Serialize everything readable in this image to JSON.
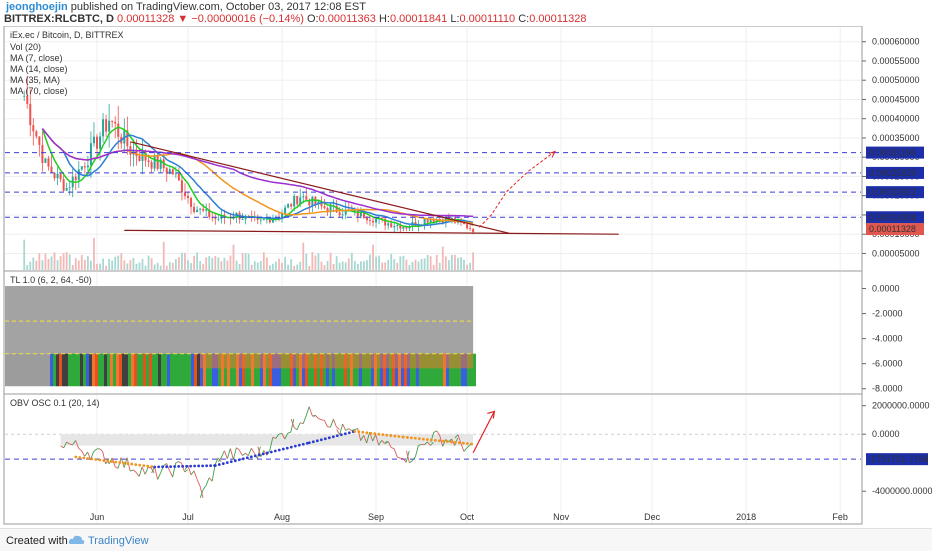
{
  "header": {
    "user": "jeonghoejin",
    "published": " published on TradingView.com, October 03, 2017 12:08 EST",
    "symbol": "BITTREX:RLCBTC, D",
    "price": " 0.00011328",
    "arrow": "▼",
    "change": " −0.00000016 (−0.14%)",
    "o_label": " O:",
    "o_value": "0.00011363",
    "h_label": " H:",
    "h_value": "0.00011841",
    "l_label": " L:",
    "l_value": "0.00011110",
    "c_label": " C:",
    "c_value": "0.00011328"
  },
  "footer": {
    "created_with": "Created with",
    "brand": "TradingView"
  },
  "colors": {
    "up": "#26a69a",
    "down": "#ef5350",
    "level": "#3d3dd8",
    "trend": "#8b1a1a",
    "ma7": "#22cc22",
    "ma14": "#2d7fd6",
    "ma35": "#f0961e",
    "ma70": "#9b2fcf",
    "target": "#e02020"
  },
  "chart_data": [
    {
      "type": "candlestick",
      "title": "iEx.ec / Bitcoin, D, BITTREX",
      "legend": [
        "Vol (20)",
        "MA (7, close)",
        "MA (14, close)",
        "MA (35, MA)",
        "MA (70, close)"
      ],
      "x_ticks": [
        "Jun",
        "Jul",
        "Aug",
        "Sep",
        "Oct",
        "Nov",
        "Dec",
        "2018",
        "Feb"
      ],
      "y_ticks": [
        "0.00060000",
        "0.00055000",
        "0.00050000",
        "0.00045000",
        "0.00040000",
        "0.00035000",
        "0.00030000",
        "0.00025000",
        "0.00020000",
        "0.00015000",
        "0.00010000",
        "0.00005000"
      ],
      "ylim": [
        2e-05,
        0.00062
      ],
      "horizontal_levels": [
        {
          "label": "0.00031196",
          "value": 0.00031196
        },
        {
          "label": "0.00025920",
          "value": 0.0002592
        },
        {
          "label": "0.00020922",
          "value": 0.00020922
        },
        {
          "label": "0.00014396",
          "value": 0.00014396
        }
      ],
      "last_price": {
        "label": "0.00011328",
        "value": 0.00011328
      },
      "close_series": {
        "x": [
          "2017-05-08",
          "2017-05-15",
          "2017-05-22",
          "2017-05-29",
          "2017-06-05",
          "2017-06-12",
          "2017-06-19",
          "2017-06-26",
          "2017-07-03",
          "2017-07-10",
          "2017-07-17",
          "2017-07-24",
          "2017-07-31",
          "2017-08-07",
          "2017-08-14",
          "2017-08-21",
          "2017-08-28",
          "2017-09-04",
          "2017-09-11",
          "2017-09-18",
          "2017-09-25",
          "2017-10-03"
        ],
        "values": [
          0.00046,
          0.00028,
          0.00022,
          0.0003,
          0.0004,
          0.00032,
          0.00029,
          0.00026,
          0.00017,
          0.00014,
          0.00015,
          0.00013,
          0.00015,
          0.0002,
          0.00017,
          0.00016,
          0.00015,
          0.00013,
          0.00012,
          0.00014,
          0.00014,
          0.00011328
        ]
      }
    },
    {
      "type": "heatmap",
      "title": "TL 1.0 (6, 2, 64, -50)",
      "y_ticks": [
        "0.0000",
        "-2.0000",
        "-4.0000",
        "-6.0000",
        "-8.0000"
      ],
      "ylim": [
        -8.1,
        0.6
      ]
    },
    {
      "type": "line",
      "title": "OBV OSC 0.1 (20, 14)",
      "y_ticks": [
        "2000000.0000",
        "0.0000",
        "-4000000.0000"
      ],
      "level": {
        "label": "-1751751.7166",
        "value": -1751751.7166
      },
      "ylim": [
        -5600000,
        2400000
      ]
    }
  ]
}
